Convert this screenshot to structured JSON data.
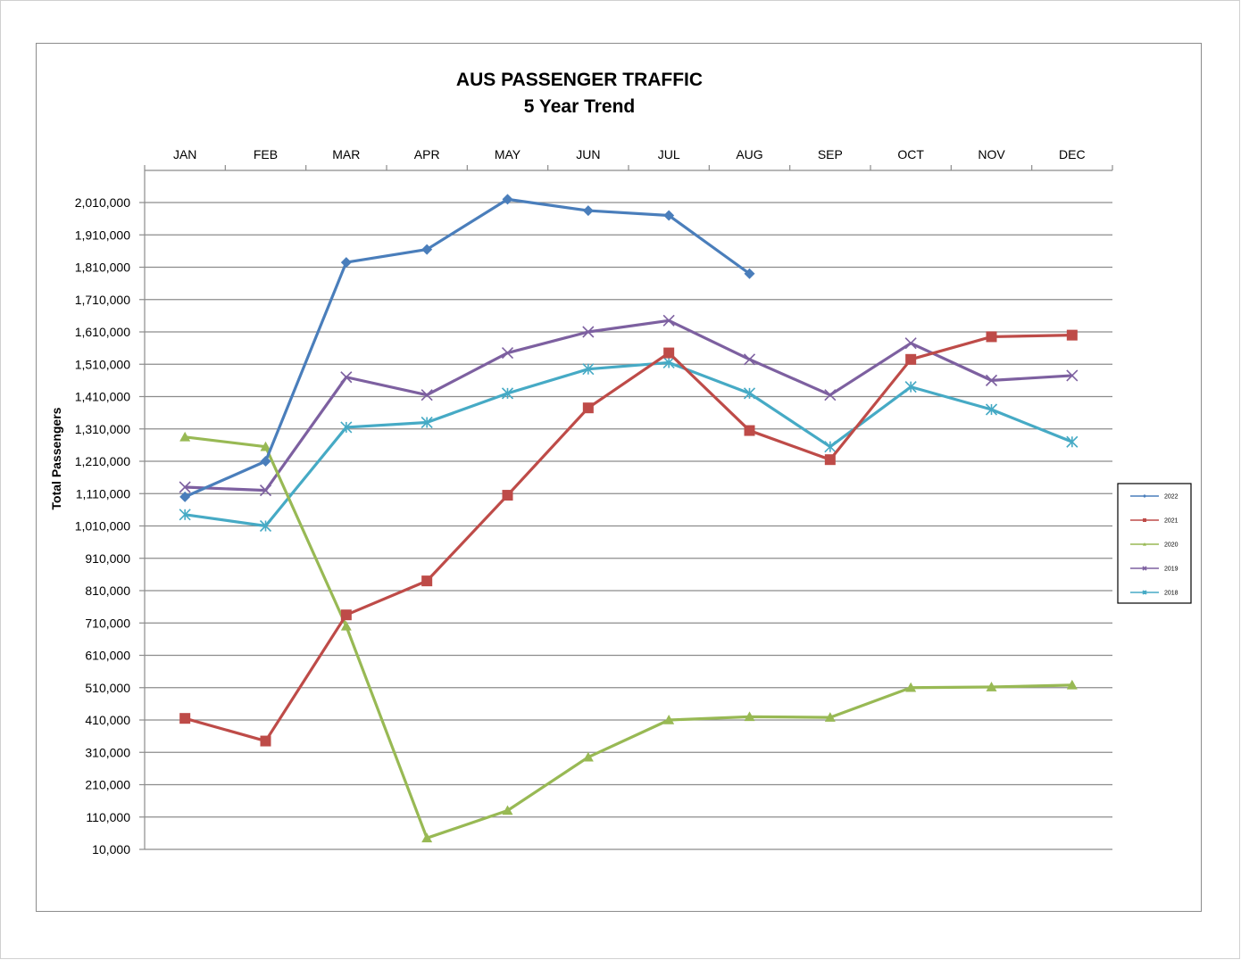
{
  "chart_data": {
    "type": "line",
    "title": "AUS PASSENGER TRAFFIC",
    "subtitle": "5 Year Trend",
    "ylabel": "Total Passengers",
    "xlabel": "",
    "categories": [
      "JAN",
      "FEB",
      "MAR",
      "APR",
      "MAY",
      "JUN",
      "JUL",
      "AUG",
      "SEP",
      "OCT",
      "NOV",
      "DEC"
    ],
    "x_axis_position": "top",
    "ylim": [
      10000,
      2010000
    ],
    "yticks": [
      10000,
      110000,
      210000,
      310000,
      410000,
      510000,
      610000,
      710000,
      810000,
      910000,
      1010000,
      1110000,
      1210000,
      1310000,
      1410000,
      1510000,
      1610000,
      1710000,
      1810000,
      1910000,
      2010000
    ],
    "ytick_labels": [
      "10,000",
      "110,000",
      "210,000",
      "310,000",
      "410,000",
      "510,000",
      "610,000",
      "710,000",
      "810,000",
      "910,000",
      "1,010,000",
      "1,110,000",
      "1,210,000",
      "1,310,000",
      "1,410,000",
      "1,510,000",
      "1,610,000",
      "1,710,000",
      "1,810,000",
      "1,910,000",
      "2,010,000"
    ],
    "grid": true,
    "legend": "right",
    "series": [
      {
        "name": "2022",
        "color": "#4a7ebb",
        "marker": "diamond",
        "values": [
          1100000,
          1210000,
          1825000,
          1865000,
          2020000,
          1985000,
          1970000,
          1790000,
          null,
          null,
          null,
          null
        ]
      },
      {
        "name": "2021",
        "color": "#be4b48",
        "marker": "square",
        "values": [
          415000,
          345000,
          735000,
          840000,
          1105000,
          1375000,
          1545000,
          1305000,
          1215000,
          1525000,
          1595000,
          1600000
        ]
      },
      {
        "name": "2020",
        "color": "#98b954",
        "marker": "triangle",
        "values": [
          1285000,
          1255000,
          700000,
          45000,
          130000,
          295000,
          410000,
          420000,
          418000,
          510000,
          512000,
          518000
        ]
      },
      {
        "name": "2019",
        "color": "#7d60a0",
        "marker": "x",
        "values": [
          1130000,
          1120000,
          1470000,
          1415000,
          1545000,
          1610000,
          1645000,
          1525000,
          1415000,
          1575000,
          1460000,
          1475000
        ]
      },
      {
        "name": "2018",
        "color": "#46aac5",
        "marker": "star",
        "values": [
          1045000,
          1010000,
          1315000,
          1330000,
          1420000,
          1495000,
          1515000,
          1420000,
          1255000,
          1440000,
          1370000,
          1270000
        ]
      }
    ]
  }
}
